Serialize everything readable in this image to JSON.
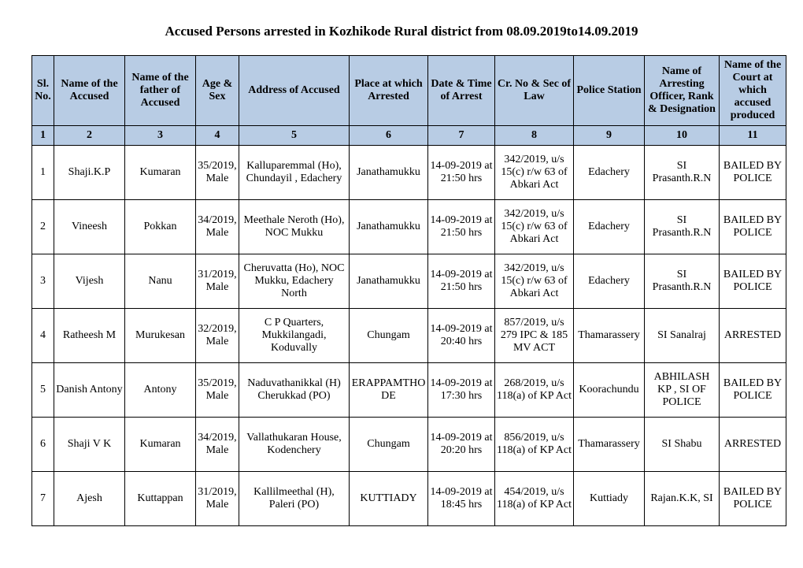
{
  "title": "Accused Persons arrested in    Kozhikode Rural   district from   08.09.2019to14.09.2019",
  "headers": [
    "Sl. No.",
    "Name of the Accused",
    "Name of the father of Accused",
    "Age & Sex",
    "Address of Accused",
    "Place at which Arrested",
    "Date & Time of Arrest",
    "Cr. No & Sec of Law",
    "Police Station",
    "Name of Arresting Officer, Rank & Designation",
    "Name of the Court at which accused produced"
  ],
  "colnums": [
    "1",
    "2",
    "3",
    "4",
    "5",
    "6",
    "7",
    "8",
    "9",
    "10",
    "11"
  ],
  "rows": [
    {
      "sl": "1",
      "name": "Shaji.K.P",
      "father": "Kumaran",
      "age": "35/2019, Male",
      "address": "Kalluparemmal (Ho), Chundayil , Edachery",
      "place": "Janathamukku",
      "datetime": "14-09-2019 at 21:50 hrs",
      "crno": "342/2019, u/s 15(c) r/w 63 of Abkari Act",
      "station": "Edachery",
      "officer": "SI Prasanth.R.N",
      "court": "BAILED BY POLICE"
    },
    {
      "sl": "2",
      "name": "Vineesh",
      "father": "Pokkan",
      "age": "34/2019, Male",
      "address": "Meethale Neroth (Ho), NOC Mukku",
      "place": "Janathamukku",
      "datetime": "14-09-2019 at 21:50 hrs",
      "crno": "342/2019, u/s 15(c) r/w 63 of Abkari Act",
      "station": "Edachery",
      "officer": "SI Prasanth.R.N",
      "court": "BAILED BY POLICE"
    },
    {
      "sl": "3",
      "name": "Vijesh",
      "father": "Nanu",
      "age": "31/2019, Male",
      "address": "Cheruvatta (Ho), NOC Mukku, Edachery North",
      "place": "Janathamukku",
      "datetime": "14-09-2019 at 21:50 hrs",
      "crno": "342/2019, u/s 15(c) r/w 63 of Abkari Act",
      "station": "Edachery",
      "officer": "SI Prasanth.R.N",
      "court": "BAILED BY POLICE"
    },
    {
      "sl": "4",
      "name": "Ratheesh M",
      "father": "Murukesan",
      "age": "32/2019, Male",
      "address": "C P Quarters, Mukkilangadi, Koduvally",
      "place": "Chungam",
      "datetime": "14-09-2019 at 20:40 hrs",
      "crno": "857/2019, u/s 279 IPC & 185 MV ACT",
      "station": "Thamarassery",
      "officer": "SI Sanalraj",
      "court": "ARRESTED"
    },
    {
      "sl": "5",
      "name": "Danish Antony",
      "father": "Antony",
      "age": "35/2019, Male",
      "address": "Naduvathanikkal (H) Cherukkad (PO)",
      "place": "ERAPPAMTHODE",
      "datetime": "14-09-2019 at 17:30 hrs",
      "crno": "268/2019, u/s 118(a) of KP Act",
      "station": "Koorachundu",
      "officer": "ABHILASH KP , SI OF POLICE",
      "court": "BAILED BY POLICE"
    },
    {
      "sl": "6",
      "name": "Shaji V K",
      "father": "Kumaran",
      "age": "34/2019, Male",
      "address": "Vallathukaran House, Kodenchery",
      "place": "Chungam",
      "datetime": "14-09-2019 at 20:20 hrs",
      "crno": "856/2019, u/s 118(a) of KP Act",
      "station": "Thamarassery",
      "officer": "SI Shabu",
      "court": "ARRESTED"
    },
    {
      "sl": "7",
      "name": "Ajesh",
      "father": "Kuttappan",
      "age": "31/2019, Male",
      "address": "Kallilmeethal (H), Paleri (PO)",
      "place": "KUTTIADY",
      "datetime": "14-09-2019 at 18:45 hrs",
      "crno": "454/2019, u/s 118(a) of KP Act",
      "station": "Kuttiady",
      "officer": "Rajan.K.K, SI",
      "court": "BAILED BY POLICE"
    }
  ]
}
